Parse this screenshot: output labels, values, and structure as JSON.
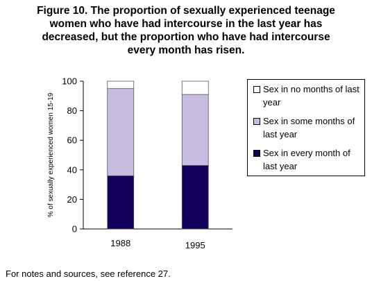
{
  "title_lines": [
    "Figure 10.  The proportion of sexually experienced teenage",
    "women who have had intercourse in the last year has",
    "decreased, but the proportion who have had intercourse",
    "every month has risen."
  ],
  "footnote": "For notes and sources, see reference 27.",
  "chart_data": {
    "type": "bar",
    "stacked": true,
    "categories": [
      "1988",
      "1995"
    ],
    "series": [
      {
        "name": "Sex in every month of last year",
        "values": [
          36,
          43
        ],
        "color": "#13005a"
      },
      {
        "name": "Sex in some months of last year",
        "values": [
          59,
          48
        ],
        "color": "#c8bde0"
      },
      {
        "name": "Sex in no months of last year",
        "values": [
          5,
          9
        ],
        "color": "#ffffff"
      }
    ],
    "ylabel": "% of sexually experienced women 15-19",
    "ylim": [
      0,
      100
    ],
    "yticks": [
      "0",
      "20",
      "40",
      "60",
      "80",
      "100"
    ],
    "grid": false,
    "legend_position": "right"
  },
  "legend": [
    {
      "label": "Sex in no months of last year",
      "color": "#ffffff"
    },
    {
      "label": "Sex in some months of last year",
      "color": "#c8bde0"
    },
    {
      "label": "Sex in every month of last year",
      "color": "#13005a"
    }
  ]
}
